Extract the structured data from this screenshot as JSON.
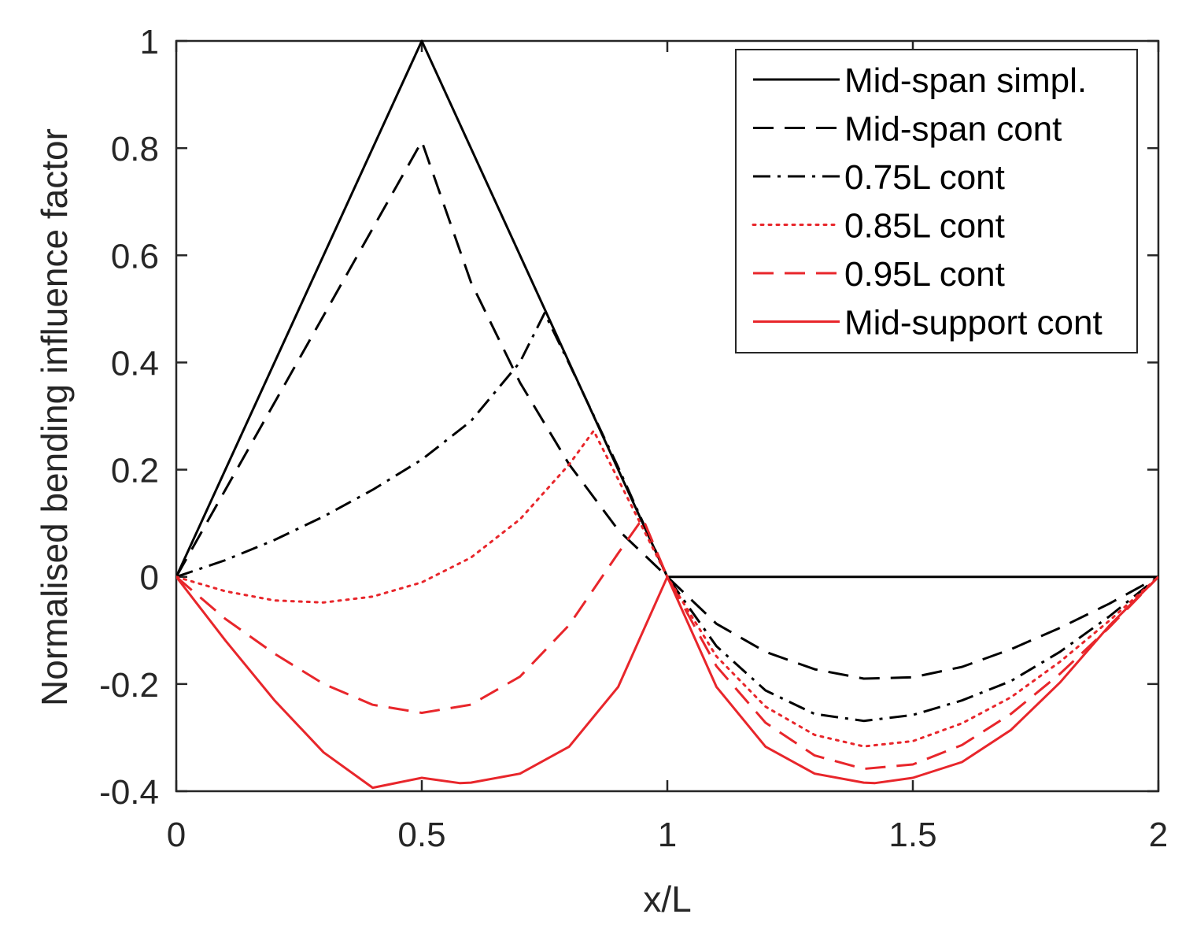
{
  "chart_data": {
    "type": "line",
    "title": "",
    "xlabel": "x/L",
    "ylabel": "Normalised bending influence factor",
    "xlim": [
      0,
      2
    ],
    "ylim": [
      -0.4,
      1
    ],
    "xticks": [
      0,
      0.5,
      1,
      1.5,
      2
    ],
    "xtick_labels": [
      "0",
      "0.5",
      "1",
      "1.5",
      "2"
    ],
    "yticks": [
      -0.4,
      -0.2,
      0,
      0.2,
      0.4,
      0.6,
      0.8,
      1
    ],
    "ytick_labels": [
      "-0.4",
      "-0.2",
      "0",
      "0.2",
      "0.4",
      "0.6",
      "0.8",
      "1"
    ],
    "grid": false,
    "legend_position": "top-right",
    "series": [
      {
        "name": "Mid-span simpl.",
        "color": "#000000",
        "dash": "solid",
        "x": [
          0,
          0.5,
          0.75,
          1,
          1.25,
          1.5,
          1.75,
          2
        ],
        "y": [
          0,
          1,
          0.5,
          0,
          0,
          0,
          0,
          0
        ]
      },
      {
        "name": "Mid-span cont",
        "color": "#000000",
        "dash": "dashed",
        "x": [
          0,
          0.1,
          0.2,
          0.3,
          0.4,
          0.5,
          0.6,
          0.7,
          0.8,
          0.9,
          1.0,
          1.1,
          1.2,
          1.3,
          1.4,
          1.5,
          1.6,
          1.7,
          1.8,
          1.9,
          2.0
        ],
        "y": [
          0,
          0.1625,
          0.325,
          0.4875,
          0.65,
          0.8125,
          0.55,
          0.3625,
          0.21,
          0.0875,
          0,
          -0.0875,
          -0.14,
          -0.1725,
          -0.19,
          -0.1875,
          -0.168,
          -0.135,
          -0.095,
          -0.05,
          0
        ]
      },
      {
        "name": "0.75L cont",
        "color": "#000000",
        "dash": "dashdot",
        "x": [
          0,
          0.1,
          0.2,
          0.3,
          0.4,
          0.5,
          0.6,
          0.7,
          0.75,
          0.8,
          0.9,
          1.0,
          1.1,
          1.2,
          1.3,
          1.4,
          1.5,
          1.6,
          1.7,
          1.8,
          1.9,
          2.0
        ],
        "y": [
          0,
          0.0312,
          0.0687,
          0.1125,
          0.1625,
          0.2187,
          0.2906,
          0.4006,
          0.4922,
          0.3981,
          0.2044,
          0,
          -0.1294,
          -0.2119,
          -0.2559,
          -0.2688,
          -0.2578,
          -0.2306,
          -0.1944,
          -0.1397,
          -0.0739,
          0
        ]
      },
      {
        "name": "0.85L cont",
        "color": "#e8262b",
        "dash": "dotted",
        "x": [
          0,
          0.1,
          0.2,
          0.3,
          0.4,
          0.5,
          0.6,
          0.7,
          0.8,
          0.85,
          0.9,
          1.0,
          1.1,
          1.2,
          1.3,
          1.4,
          1.5,
          1.6,
          1.7,
          1.8,
          1.9,
          2.0
        ],
        "y": [
          0,
          -0.0269,
          -0.0441,
          -0.0478,
          -0.0369,
          -0.0103,
          0.0359,
          0.1074,
          0.2096,
          0.2726,
          0.1818,
          0,
          -0.1484,
          -0.2422,
          -0.2949,
          -0.3164,
          -0.3066,
          -0.2734,
          -0.2246,
          -0.1582,
          -0.082,
          0
        ]
      },
      {
        "name": "0.95L cont",
        "color": "#e8262b",
        "dash": "dashed",
        "x": [
          0,
          0.1,
          0.2,
          0.3,
          0.4,
          0.5,
          0.6,
          0.7,
          0.8,
          0.9,
          0.95,
          1.0,
          1.1,
          1.2,
          1.3,
          1.4,
          1.5,
          1.6,
          1.7,
          1.8,
          1.9,
          2.0
        ],
        "y": [
          0,
          -0.0784,
          -0.1434,
          -0.1998,
          -0.2387,
          -0.2538,
          -0.2385,
          -0.1861,
          -0.0901,
          0.0443,
          0.1092,
          0,
          -0.1667,
          -0.2722,
          -0.3333,
          -0.3583,
          -0.35,
          -0.3139,
          -0.2556,
          -0.1806,
          -0.0944,
          0
        ]
      },
      {
        "name": "Mid-support cont",
        "color": "#e8262b",
        "dash": "solid",
        "x": [
          0,
          0.1,
          0.2,
          0.3,
          0.4,
          0.5,
          0.577,
          0.6,
          0.7,
          0.8,
          0.9,
          1.0,
          1.1,
          1.2,
          1.3,
          1.4,
          1.423,
          1.5,
          1.6,
          1.7,
          1.8,
          1.9,
          2.0
        ],
        "y": [
          0,
          -0.1188,
          -0.2304,
          -0.3276,
          -0.3936,
          -0.375,
          -0.3849,
          -0.384,
          -0.3672,
          -0.3168,
          -0.2052,
          0,
          -0.2052,
          -0.3168,
          -0.3672,
          -0.384,
          -0.3849,
          -0.375,
          -0.3456,
          -0.2856,
          -0.1968,
          -0.0912,
          0
        ]
      }
    ]
  }
}
